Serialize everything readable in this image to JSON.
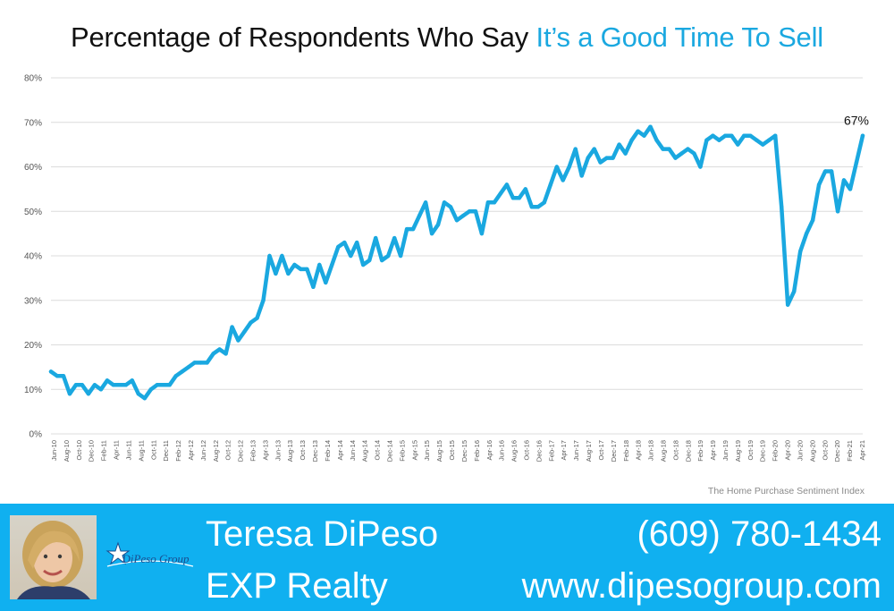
{
  "header": {
    "title_prefix": "Percentage of Respondents Who Say",
    "title_highlight": "It’s a Good Time To Sell"
  },
  "source": "The Home Purchase Sentiment Index",
  "footer": {
    "name": "Teresa DiPeso",
    "company": "EXP Realty",
    "phone": "(609) 780-1434",
    "website": "www.dipesogroup.com",
    "logo_text": "DiPeso Group"
  },
  "colors": {
    "line": "#1aa8e0",
    "footer_bg": "#10b0f0",
    "grid": "#dcdcdc"
  },
  "chart_data": {
    "type": "line",
    "ylim": [
      0,
      80
    ],
    "y_ticks": [
      "0%",
      "10%",
      "20%",
      "30%",
      "40%",
      "50%",
      "60%",
      "70%",
      "80%"
    ],
    "x_tick_labels": [
      "Jun-10",
      "Aug-10",
      "Oct-10",
      "Dec-10",
      "Feb-11",
      "Apr-11",
      "Jun-11",
      "Aug-11",
      "Oct-11",
      "Dec-11",
      "Feb-12",
      "Apr-12",
      "Jun-12",
      "Aug-12",
      "Oct-12",
      "Dec-12",
      "Feb-13",
      "Apr-13",
      "Jun-13",
      "Aug-13",
      "Oct-13",
      "Dec-13",
      "Feb-14",
      "Apr-14",
      "Jun-14",
      "Aug-14",
      "Oct-14",
      "Dec-14",
      "Feb-15",
      "Apr-15",
      "Jun-15",
      "Aug-15",
      "Oct-15",
      "Dec-15",
      "Feb-16",
      "Apr-16",
      "Jun-16",
      "Aug-16",
      "Oct-16",
      "Dec-16",
      "Feb-17",
      "Apr-17",
      "Jun-17",
      "Aug-17",
      "Oct-17",
      "Dec-17",
      "Feb-18",
      "Apr-18",
      "Jun-18",
      "Aug-18",
      "Oct-18",
      "Dec-18",
      "Feb-19",
      "Apr-19",
      "Jun-19",
      "Aug-19",
      "Oct-19",
      "Dec-19",
      "Feb-20",
      "Apr-20",
      "Jun-20",
      "Aug-20",
      "Oct-20",
      "Dec-20",
      "Feb-21",
      "Apr-21"
    ],
    "grid": "horizontal",
    "annotation": "67%",
    "series": [
      {
        "values": [
          14,
          13,
          13,
          9,
          11,
          11,
          9,
          11,
          10,
          12,
          11,
          11,
          11,
          12,
          9,
          8,
          10,
          11,
          11,
          11,
          13,
          14,
          15,
          16,
          16,
          16,
          18,
          19,
          18,
          24,
          21,
          23,
          25,
          26,
          30,
          40,
          36,
          40,
          36,
          38,
          37,
          37,
          33,
          38,
          34,
          38,
          42,
          43,
          40,
          43,
          38,
          39,
          44,
          39,
          40,
          44,
          40,
          46,
          46,
          49,
          52,
          45,
          47,
          52,
          51,
          48,
          49,
          50,
          50,
          45,
          52,
          52,
          54,
          56,
          53,
          53,
          55,
          51,
          51,
          52,
          56,
          60,
          57,
          60,
          64,
          58,
          62,
          64,
          61,
          62,
          62,
          65,
          63,
          66,
          68,
          67,
          69,
          66,
          64,
          64,
          62,
          63,
          64,
          63,
          60,
          66,
          67,
          66,
          67,
          67,
          65,
          67,
          67,
          66,
          65,
          66,
          67,
          51,
          29,
          32,
          41,
          45,
          48,
          56,
          59,
          59,
          50,
          57,
          55,
          61,
          67
        ]
      }
    ]
  }
}
